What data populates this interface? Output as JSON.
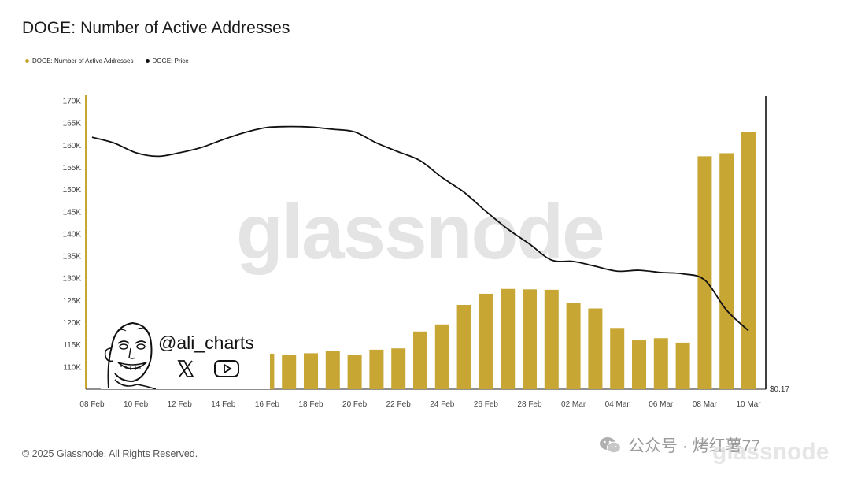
{
  "title": "DOGE: Number of Active Addresses",
  "legend": [
    {
      "label": "DOGE: Number of Active Addresses",
      "color": "#c8a634"
    },
    {
      "label": "DOGE: Price",
      "color": "#111111"
    }
  ],
  "watermark": "glassnode",
  "copyright": "© 2025 Glassnode. All Rights Reserved.",
  "wechat_text": "公众号 · 烤红薯77",
  "wechat_watermark": "glassnode",
  "overlay": {
    "handle": "@ali_charts",
    "icons": [
      "x-icon",
      "youtube-icon"
    ]
  },
  "chart_data": {
    "type": "bar",
    "title": "DOGE: Number of Active Addresses",
    "bar_color": "#c8a634",
    "line_color": "#111111",
    "ylim": [
      105000,
      170000
    ],
    "y_ticks": [
      {
        "value": 110000,
        "label": "110K"
      },
      {
        "value": 115000,
        "label": "115K"
      },
      {
        "value": 120000,
        "label": "120K"
      },
      {
        "value": 125000,
        "label": "125K"
      },
      {
        "value": 130000,
        "label": "130K"
      },
      {
        "value": 135000,
        "label": "135K"
      },
      {
        "value": 140000,
        "label": "140K"
      },
      {
        "value": 145000,
        "label": "145K"
      },
      {
        "value": 150000,
        "label": "150K"
      },
      {
        "value": 155000,
        "label": "155K"
      },
      {
        "value": 160000,
        "label": "160K"
      },
      {
        "value": 165000,
        "label": "165K"
      },
      {
        "value": 170000,
        "label": "170K"
      }
    ],
    "right_axis_label": "$0.17",
    "x_tick_labels": [
      "08 Feb",
      "10 Feb",
      "12 Feb",
      "14 Feb",
      "16 Feb",
      "18 Feb",
      "20 Feb",
      "22 Feb",
      "24 Feb",
      "26 Feb",
      "28 Feb",
      "02 Mar",
      "04 Mar",
      "06 Mar",
      "08 Mar",
      "10 Mar"
    ],
    "categories": [
      "08 Feb",
      "09 Feb",
      "10 Feb",
      "11 Feb",
      "12 Feb",
      "13 Feb",
      "14 Feb",
      "15 Feb",
      "16 Feb",
      "17 Feb",
      "18 Feb",
      "19 Feb",
      "20 Feb",
      "21 Feb",
      "22 Feb",
      "23 Feb",
      "24 Feb",
      "25 Feb",
      "26 Feb",
      "27 Feb",
      "28 Feb",
      "01 Mar",
      "02 Mar",
      "03 Mar",
      "04 Mar",
      "05 Mar",
      "06 Mar",
      "07 Mar",
      "08 Mar",
      "09 Mar",
      "10 Mar"
    ],
    "series": [
      {
        "name": "DOGE: Number of Active Addresses",
        "values": [
          null,
          null,
          null,
          null,
          null,
          null,
          null,
          null,
          113000,
          112700,
          113100,
          113600,
          112800,
          113900,
          114200,
          118000,
          119600,
          124000,
          126500,
          127600,
          127500,
          127400,
          124500,
          123200,
          118800,
          116000,
          116500,
          115500,
          157500,
          158200,
          163000
        ]
      },
      {
        "name": "DOGE: Price",
        "values": [
          161800,
          160500,
          158300,
          157500,
          158300,
          159500,
          161300,
          162900,
          164000,
          164200,
          164100,
          163600,
          163000,
          160500,
          158500,
          156500,
          152700,
          149400,
          145100,
          141100,
          137700,
          134100,
          133800,
          132700,
          131600,
          131800,
          131300,
          131000,
          129600,
          122800,
          118200
        ]
      }
    ]
  }
}
